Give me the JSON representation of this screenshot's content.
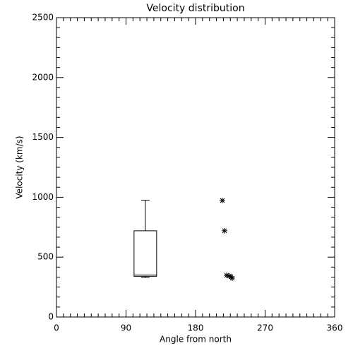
{
  "chart_data": {
    "type": "box_scatter",
    "title": "Velocity distribution",
    "xlabel": "Angle from north",
    "ylabel": "Velocity (km/s)",
    "xlim": [
      0,
      360
    ],
    "xticks": [
      0,
      90,
      180,
      270,
      360
    ],
    "ylim": [
      0,
      2500
    ],
    "yticks": [
      0,
      500,
      1000,
      1500,
      2000,
      2500
    ],
    "x_minor_ticks": 9,
    "y_minor_ticks": 5,
    "box": {
      "position": 115,
      "whislo": 330,
      "q1": 340,
      "med": 350,
      "q3": 720,
      "whishi": 975
    },
    "scatter": {
      "marker": "asterisk",
      "x": [
        214.7,
        217.5,
        220.2,
        223.9,
        225.7,
        227.5
      ],
      "values": [
        973,
        720,
        348,
        342,
        336,
        324
      ]
    },
    "color": "#000000"
  }
}
